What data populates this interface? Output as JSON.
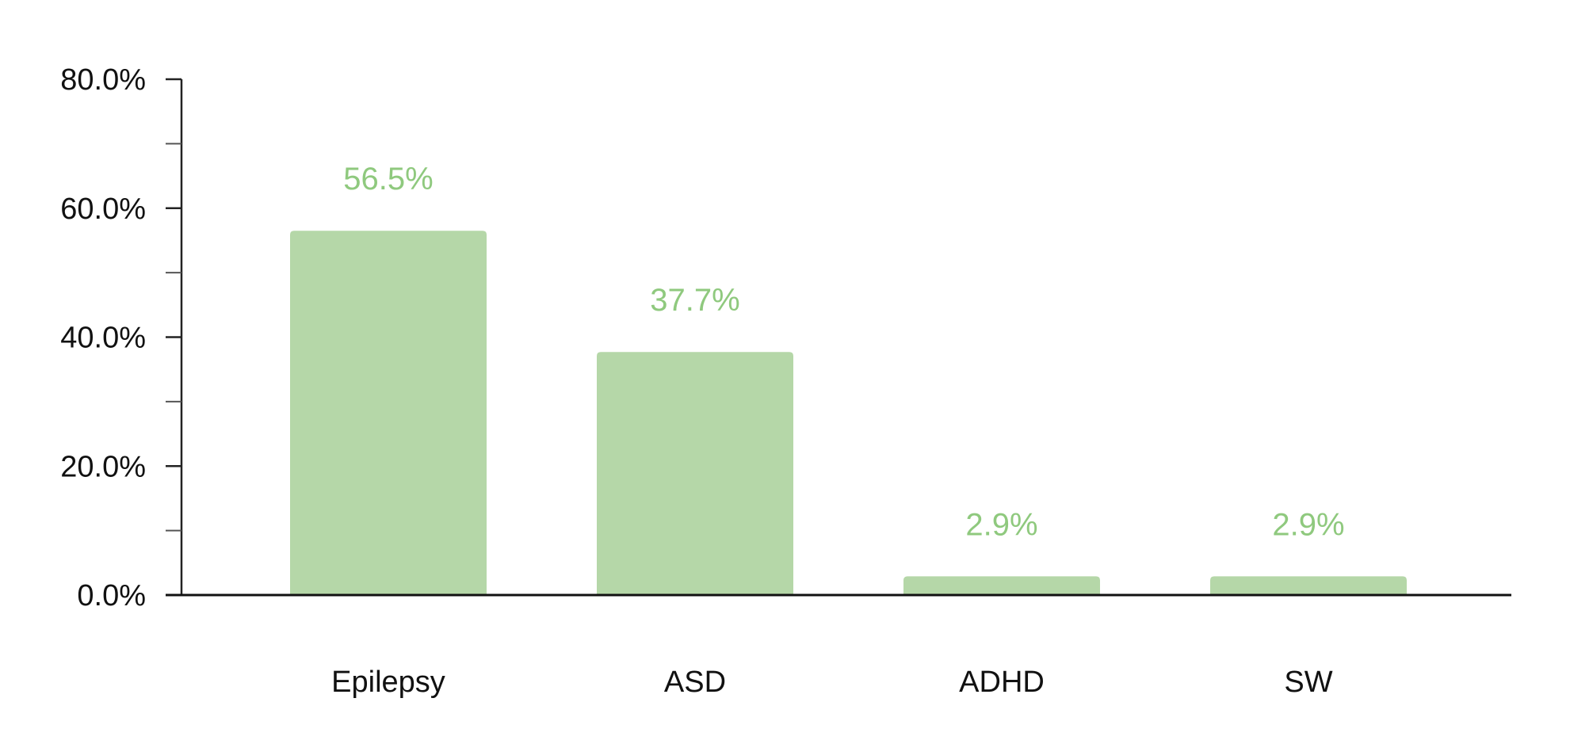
{
  "chart_data": {
    "type": "bar",
    "categories": [
      "Epilepsy",
      "ASD",
      "ADHD",
      "SW"
    ],
    "values": [
      56.5,
      37.7,
      2.9,
      2.9
    ],
    "data_labels": [
      "56.5%",
      "37.7%",
      "2.9%",
      "2.9%"
    ],
    "ylim": [
      0,
      80
    ],
    "y_ticks": [
      0,
      20,
      40,
      60,
      80
    ],
    "y_tick_labels": [
      "0.0%",
      "20.0%",
      "40.0%",
      "60.0%",
      "80.0%"
    ],
    "y_minor_ticks": [
      10,
      30,
      50,
      70
    ],
    "grid": false,
    "legend": "none",
    "bar_color": "#b5d7a8",
    "label_color": "#8fc97e"
  }
}
